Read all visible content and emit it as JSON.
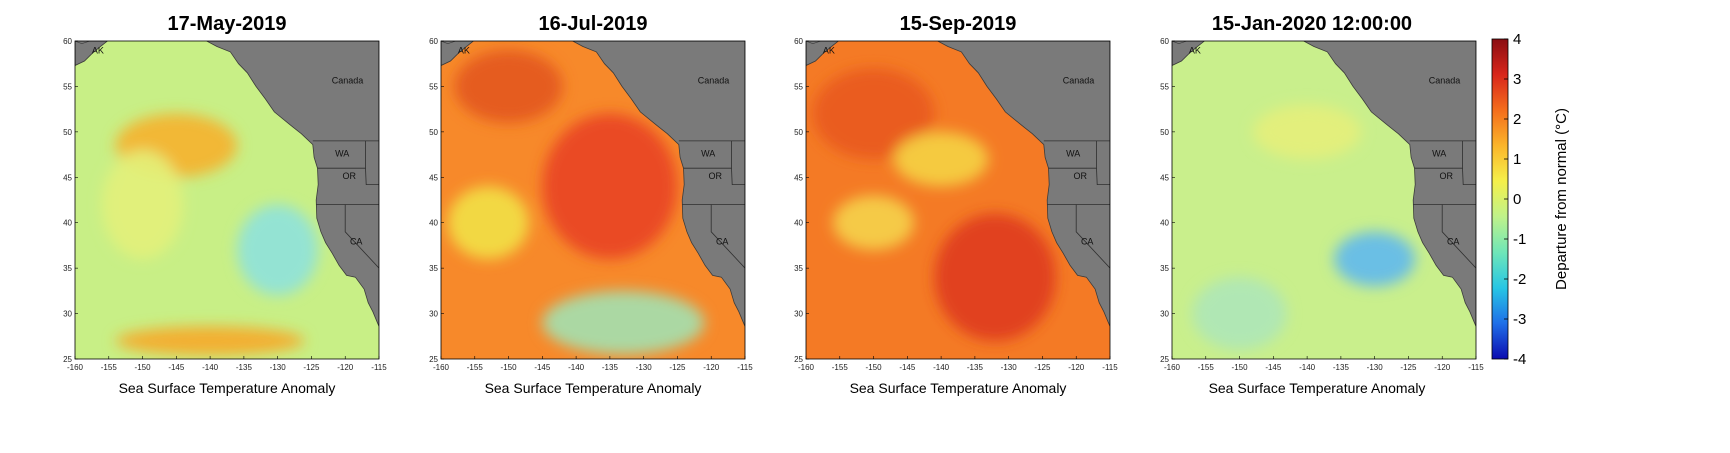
{
  "figure": {
    "colorbar": {
      "label": "Departure from normal (°C)",
      "ticks": [
        "4",
        "3",
        "2",
        "1",
        "0",
        "-1",
        "-2",
        "-3",
        "-4"
      ],
      "range": [
        -4,
        4
      ],
      "colormap": [
        "#0b0bb0",
        "#1f6fe8",
        "#27c6e4",
        "#6fe6b8",
        "#bff28a",
        "#f5f04a",
        "#fbb52a",
        "#f46d1c",
        "#d8261b",
        "#8a0d12"
      ]
    },
    "axes": {
      "x_ticks": [
        "-160",
        "-155",
        "-150",
        "-145",
        "-140",
        "-135",
        "-130",
        "-125",
        "-120",
        "-115"
      ],
      "y_ticks": [
        "60",
        "55",
        "50",
        "45",
        "40",
        "35",
        "30",
        "25"
      ],
      "lon_range": [
        -160,
        -115
      ],
      "lat_range": [
        25,
        60
      ]
    },
    "region_labels": {
      "ak": "AK",
      "canada": "Canada",
      "wa": "WA",
      "or": "OR",
      "ca": "CA"
    },
    "panels": [
      {
        "title": "17-May-2019",
        "xlabel": "Sea Surface Temperature Anomaly",
        "base_color": "#c8ef86",
        "hot_spots": [
          {
            "lon": -145,
            "lat": 48.5,
            "rx": 9,
            "ry": 3.5,
            "color": "#f6b12c"
          },
          {
            "lon": -140,
            "lat": 27,
            "rx": 14,
            "ry": 1.6,
            "color": "#f7a92a"
          },
          {
            "lon": -130,
            "lat": 37,
            "rx": 6,
            "ry": 5,
            "color": "#8fe2dc"
          },
          {
            "lon": -150,
            "lat": 42,
            "rx": 6,
            "ry": 6,
            "color": "#e3f17a"
          }
        ]
      },
      {
        "title": "16-Jul-2019",
        "xlabel": "Sea Surface Temperature Anomaly",
        "base_color": "#f7892a",
        "hot_spots": [
          {
            "lon": -135,
            "lat": 44,
            "rx": 10,
            "ry": 8,
            "color": "#e94322"
          },
          {
            "lon": -150,
            "lat": 55,
            "rx": 8,
            "ry": 4,
            "color": "#e3561f"
          },
          {
            "lon": -133,
            "lat": 29,
            "rx": 12,
            "ry": 3.5,
            "color": "#a3e1b0"
          },
          {
            "lon": -153,
            "lat": 40,
            "rx": 6,
            "ry": 4,
            "color": "#f2e147"
          }
        ]
      },
      {
        "title": "15-Sep-2019",
        "xlabel": "Sea Surface Temperature Anomaly",
        "base_color": "#f47a25",
        "hot_spots": [
          {
            "lon": -132,
            "lat": 34,
            "rx": 9,
            "ry": 7,
            "color": "#df3a1c"
          },
          {
            "lon": -150,
            "lat": 52,
            "rx": 9,
            "ry": 5,
            "color": "#e95a20"
          },
          {
            "lon": -140,
            "lat": 47,
            "rx": 7,
            "ry": 3,
            "color": "#f5d344"
          },
          {
            "lon": -150,
            "lat": 40,
            "rx": 6,
            "ry": 3,
            "color": "#f5d34a"
          }
        ]
      },
      {
        "title": "15-Jan-2020 12:00:00",
        "xlabel": "Sea Surface Temperature Anomaly",
        "base_color": "#c9ef8c",
        "hot_spots": [
          {
            "lon": -130,
            "lat": 36,
            "rx": 6,
            "ry": 3,
            "color": "#60b9ee"
          },
          {
            "lon": -140,
            "lat": 50,
            "rx": 8,
            "ry": 3,
            "color": "#e6f07a"
          },
          {
            "lon": -150,
            "lat": 30,
            "rx": 7,
            "ry": 4,
            "color": "#aee7b8"
          }
        ]
      }
    ]
  }
}
